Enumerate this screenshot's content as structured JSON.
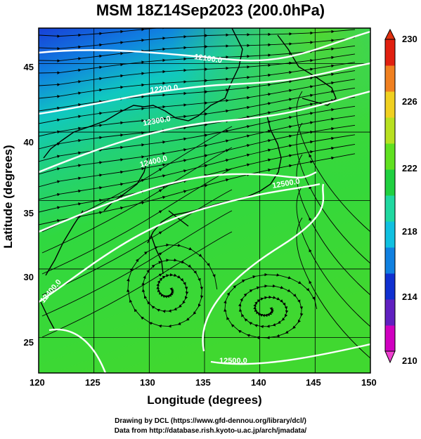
{
  "title": "MSM 18Z14Sep2023 (200.0hPa)",
  "axes": {
    "xlabel": "Longitude (degrees)",
    "ylabel": "Latitude  (degrees)",
    "xticks": [
      "120",
      "125",
      "130",
      "135",
      "140",
      "145",
      "150"
    ],
    "yticks": [
      "45",
      "40",
      "35",
      "30",
      "25"
    ],
    "xlim": [
      120,
      150
    ],
    "ylim": [
      22.4,
      47.6
    ]
  },
  "colorbar": {
    "ticks": [
      "230",
      "226",
      "222",
      "218",
      "214",
      "210"
    ],
    "range": [
      210,
      230
    ],
    "colors": [
      "#d000c0",
      "#6020c0",
      "#1030d0",
      "#1080e0",
      "#10c0e0",
      "#20d8a0",
      "#20d040",
      "#60e020",
      "#b8e020",
      "#f0d020",
      "#f08020",
      "#e02010"
    ]
  },
  "contours": {
    "label_unit": "m",
    "labels": [
      "12100.0",
      "12200.0",
      "12300.0",
      "12400.0",
      "12500.0",
      "12500.0",
      "12400.0"
    ]
  },
  "credits": {
    "line1": "Drawing by DCL (https://www.gfd-dennou.org/library/dcl/)",
    "line2": "Data from http://database.rish.kyoto-u.ac.jp/arch/jmadata/"
  }
}
